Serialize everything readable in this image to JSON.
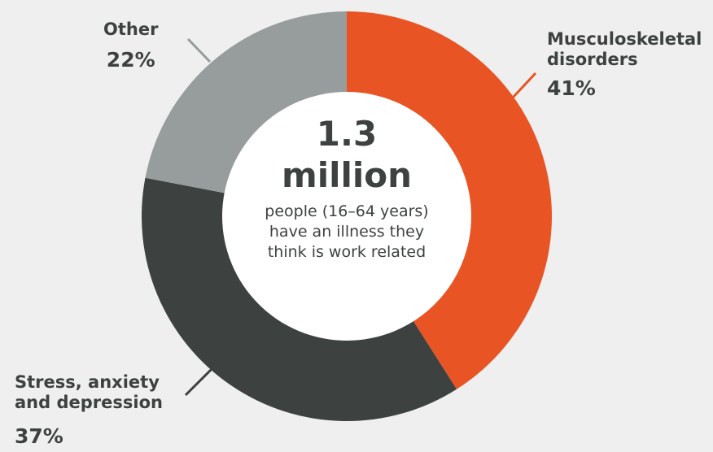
{
  "chart_data": {
    "type": "pie",
    "style": "donut",
    "categories": [
      "Musculoskeletal disorders",
      "Stress, anxiety and depression",
      "Other"
    ],
    "values": [
      41,
      37,
      22
    ],
    "units": "%",
    "colors": [
      "#e85424",
      "#3d4240",
      "#969d9c"
    ],
    "slice_labels": [
      {
        "lines": [
          "Musculoskeletal",
          "disorders"
        ],
        "value": "41%"
      },
      {
        "lines": [
          "Stress, anxiety",
          "and depression"
        ],
        "value": "37%"
      },
      {
        "lines": [
          "Other"
        ],
        "value": "22%"
      }
    ],
    "center": {
      "number": "1.3",
      "unit": "million",
      "lines": [
        "people (16–64 years)",
        "have an illness they",
        "think is work related"
      ]
    }
  }
}
